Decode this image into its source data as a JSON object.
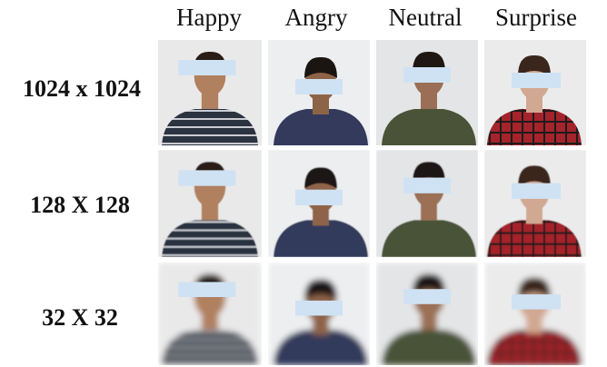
{
  "columns": [
    "Happy",
    "Angry",
    "Neutral",
    "Surprise"
  ],
  "rows": [
    "1024 x 1024",
    "128 X 128",
    "32 X 32"
  ]
}
